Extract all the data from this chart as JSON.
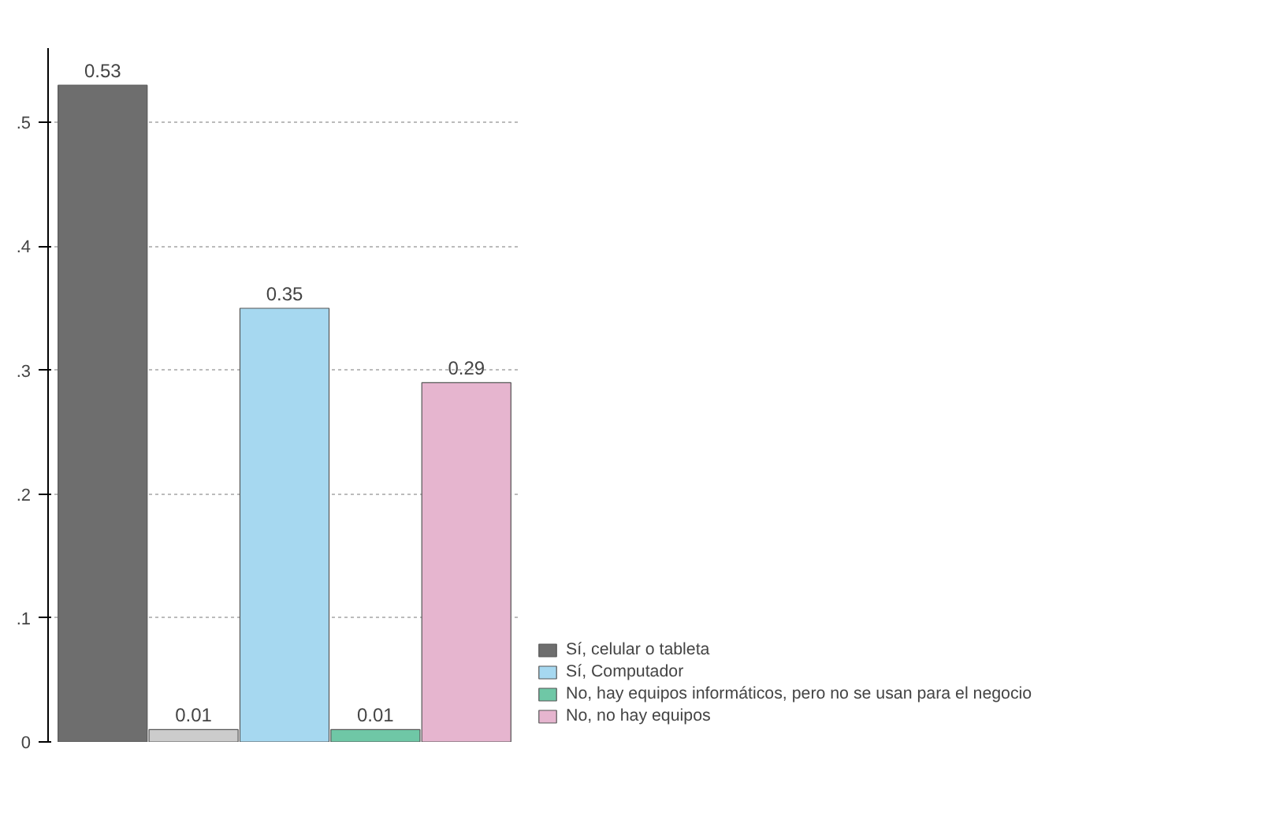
{
  "chart_data": {
    "type": "bar",
    "categories": [
      null,
      null,
      null,
      null,
      null
    ],
    "series": [
      {
        "name": "Sí, celular o tableta",
        "color": "#6e6e6e",
        "values": [
          0.53,
          null,
          null,
          null,
          null
        ]
      },
      {
        "color": "#cccccc",
        "values": [
          null,
          0.01,
          null,
          null,
          null
        ]
      },
      {
        "name": "Sí, Computador",
        "color": "#a6d8f0",
        "values": [
          null,
          null,
          0.35,
          null,
          null
        ]
      },
      {
        "name": "No, hay equipos informáticos, pero no se usan para el negocio",
        "color": "#6fc7a6",
        "values": [
          null,
          null,
          null,
          0.01,
          null
        ]
      },
      {
        "name": "No, no hay equipos",
        "color": "#e6b5cf",
        "values": [
          null,
          null,
          null,
          null,
          0.29
        ]
      }
    ],
    "ylim": [
      0,
      0.56
    ],
    "yticks": [
      {
        "value": 0,
        "label": "0"
      },
      {
        "value": 0.1,
        "label": ".1"
      },
      {
        "value": 0.2,
        "label": ".2"
      },
      {
        "value": 0.3,
        "label": ".3"
      },
      {
        "value": 0.4,
        "label": ".4"
      },
      {
        "value": 0.5,
        "label": ".5"
      }
    ],
    "grid": "y",
    "legend": "bottom right",
    "data_labels": true
  }
}
